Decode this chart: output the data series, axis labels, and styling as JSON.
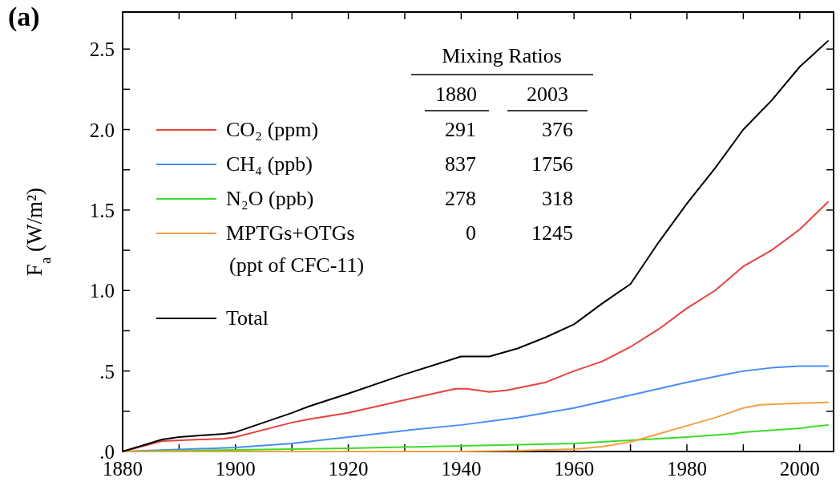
{
  "chart_data": {
    "type": "line",
    "ylabel": "F$_{a}$ (W/m²)",
    "annotations": [
      "(a)",
      "Mixing Ratios",
      "1880",
      "2003",
      "291",
      "376",
      "837",
      "1756",
      "278",
      "318",
      "0",
      "1245"
    ],
    "xlim": [
      1880,
      2006
    ],
    "xticks": [
      1880,
      {
        "value": 1890,
        "label": null
      },
      1900,
      {
        "value": 1910,
        "label": null
      },
      1920,
      {
        "value": 1930,
        "label": null
      },
      1940,
      {
        "value": 1950,
        "label": null
      },
      1960,
      {
        "value": 1970,
        "label": null
      },
      1980,
      {
        "value": 1990,
        "label": null
      },
      2000
    ],
    "ylim": [
      0,
      2.73
    ],
    "yticks": [
      {
        "value": 0,
        "label": ".0"
      },
      {
        "value": 0.25,
        "label": null
      },
      {
        "value": 0.5,
        "label": ".5"
      },
      {
        "value": 0.75,
        "label": null
      },
      {
        "value": 1,
        "label": "1.0"
      },
      {
        "value": 1.25,
        "label": null
      },
      {
        "value": 1.5,
        "label": "1.5"
      },
      {
        "value": 1.75,
        "label": null
      },
      {
        "value": 2,
        "label": "2.0"
      },
      {
        "value": 2.25,
        "label": null
      },
      {
        "value": 2.5,
        "label": "2.5"
      }
    ],
    "legend": "top left",
    "grid": false,
    "line_style": "solid",
    "series": [
      {
        "name": "CO₂ (ppm)",
        "color": "#e8413c",
        "x": [
          1880,
          1887,
          1898,
          1900,
          1910,
          1913,
          1920,
          1930,
          1939,
          1941,
          1945,
          1948,
          1955,
          1960,
          1965,
          1970,
          1975,
          1980,
          1985,
          1990,
          1995,
          2000,
          2005
        ],
        "values": [
          0,
          0.065,
          0.08,
          0.09,
          0.18,
          0.2,
          0.24,
          0.32,
          0.39,
          0.39,
          0.37,
          0.38,
          0.43,
          0.5,
          0.56,
          0.65,
          0.76,
          0.89,
          1.0,
          1.15,
          1.25,
          1.38,
          1.55
        ]
      },
      {
        "name": "CH₄ (ppb)",
        "color": "#4a8cf7",
        "x": [
          1880,
          1900,
          1910,
          1920,
          1930,
          1940,
          1950,
          1960,
          1970,
          1980,
          1987,
          1990,
          1995,
          2000,
          2005
        ],
        "values": [
          0,
          0.025,
          0.05,
          0.09,
          0.13,
          0.165,
          0.21,
          0.27,
          0.35,
          0.43,
          0.48,
          0.5,
          0.52,
          0.53,
          0.53
        ]
      },
      {
        "name": "N₂O (ppb)",
        "color": "#3ddc2a",
        "x": [
          1880,
          1900,
          1920,
          1940,
          1960,
          1970,
          1980,
          1988,
          1990,
          2000,
          2005
        ],
        "values": [
          0,
          0.01,
          0.02,
          0.035,
          0.05,
          0.07,
          0.09,
          0.11,
          0.12,
          0.145,
          0.165
        ]
      },
      {
        "name": "MPTGs+OTGs (ppt of CFC-11)",
        "color": "#f5a040",
        "x": [
          1880,
          1940,
          1950,
          1960,
          1965,
          1970,
          1975,
          1980,
          1985,
          1990,
          1993,
          2000,
          2005
        ],
        "values": [
          0,
          0,
          0.005,
          0.015,
          0.03,
          0.06,
          0.11,
          0.16,
          0.21,
          0.27,
          0.29,
          0.3,
          0.305
        ]
      },
      {
        "name": "Total",
        "color": "#000000",
        "x": [
          1880,
          1887,
          1890,
          1898,
          1900,
          1910,
          1913,
          1920,
          1930,
          1940,
          1945,
          1950,
          1955,
          1960,
          1965,
          1970,
          1975,
          1980,
          1985,
          1990,
          1995,
          2000,
          2005
        ],
        "values": [
          0,
          0.075,
          0.09,
          0.11,
          0.12,
          0.24,
          0.28,
          0.36,
          0.48,
          0.59,
          0.59,
          0.64,
          0.71,
          0.79,
          0.92,
          1.04,
          1.3,
          1.54,
          1.76,
          2.0,
          2.18,
          2.39,
          2.55
        ]
      }
    ]
  }
}
